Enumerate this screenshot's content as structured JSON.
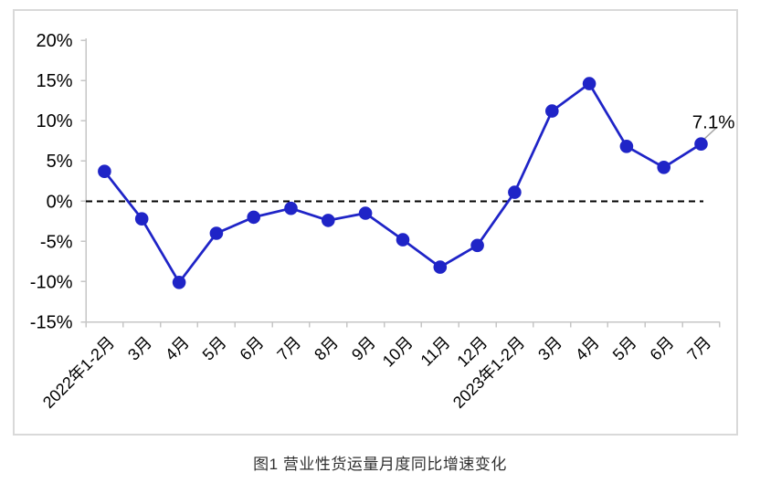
{
  "page": {
    "caption": "图1 营业性货运量月度同比增速变化"
  },
  "chart_data": {
    "type": "line",
    "title": "",
    "xlabel": "",
    "ylabel": "",
    "categories": [
      "2022年1-2月",
      "3月",
      "4月",
      "5月",
      "6月",
      "7月",
      "8月",
      "9月",
      "10月",
      "11月",
      "12月",
      "2023年1-2月",
      "3月",
      "4月",
      "5月",
      "6月",
      "7月"
    ],
    "values": [
      3.7,
      -2.2,
      -10.1,
      -4.0,
      -2.0,
      -0.9,
      -2.4,
      -1.5,
      -4.8,
      -8.2,
      -5.5,
      1.1,
      11.2,
      14.6,
      6.8,
      4.2,
      7.1
    ],
    "series_name": "营业性货运量月度同比增速",
    "ylim": [
      -15,
      20
    ],
    "yticks": [
      20,
      15,
      10,
      5,
      0,
      -5,
      -10,
      -15
    ],
    "ytick_suffix": "%",
    "grid": false,
    "legend_position": "none",
    "zero_line": {
      "style": "dashed",
      "color": "#000000"
    },
    "annotation": {
      "text": "7.1%",
      "index": 16
    },
    "colors": {
      "series": "#1f24c7",
      "axis": "#c6c6c6",
      "annotation_leader": "#a6a6a6",
      "frame_border": "#d9d9d9"
    }
  }
}
